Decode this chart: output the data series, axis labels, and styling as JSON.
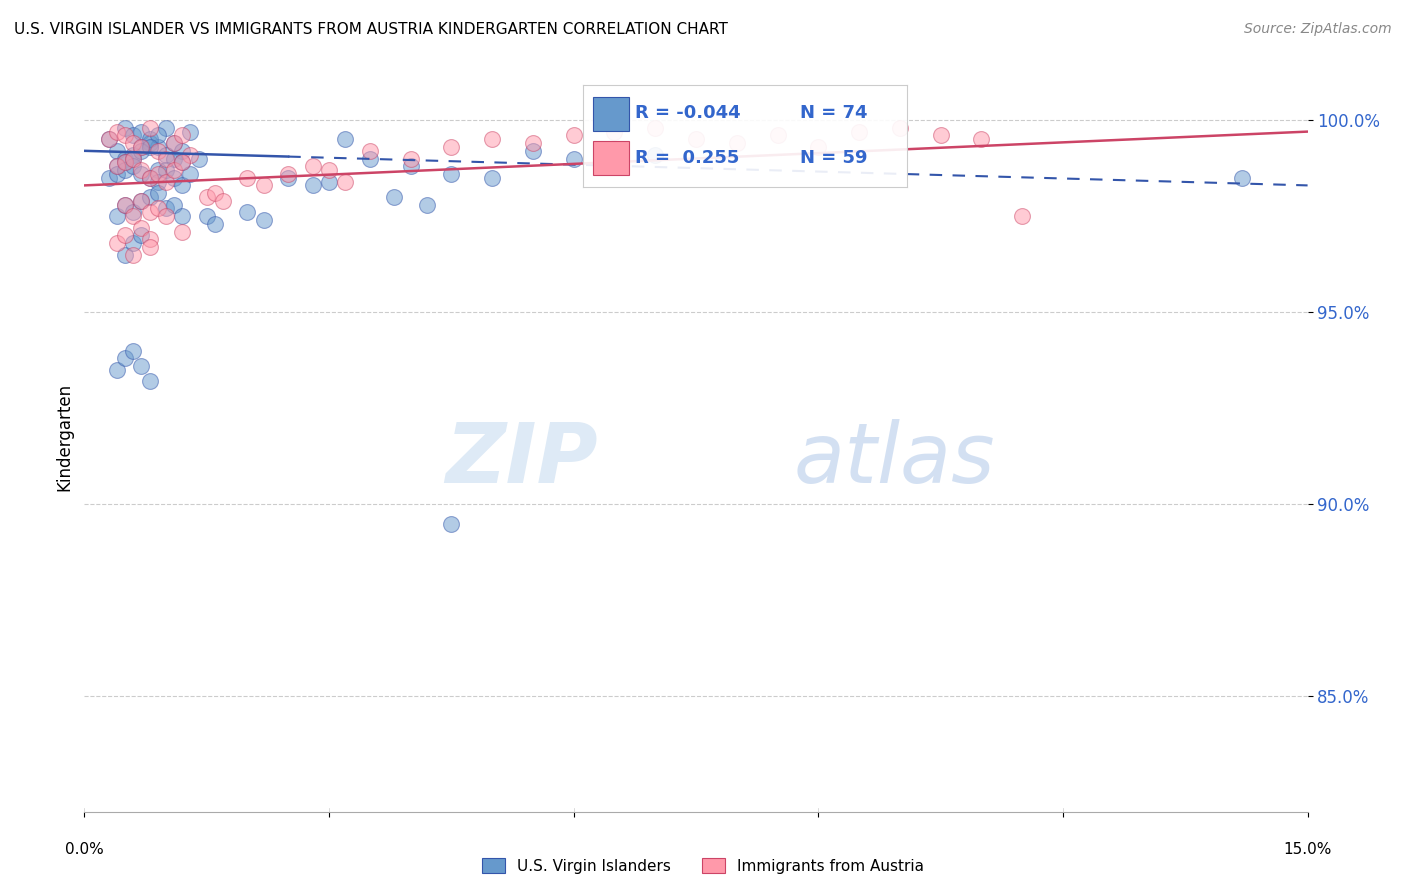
{
  "title": "U.S. VIRGIN ISLANDER VS IMMIGRANTS FROM AUSTRIA KINDERGARTEN CORRELATION CHART",
  "source": "Source: ZipAtlas.com",
  "ylabel": "Kindergarten",
  "xlim": [
    0.0,
    15.0
  ],
  "ylim": [
    82.0,
    101.5
  ],
  "ytick_values": [
    85.0,
    90.0,
    95.0,
    100.0
  ],
  "blue_color": "#6699CC",
  "pink_color": "#FF99AA",
  "blue_line_color": "#3355AA",
  "pink_line_color": "#CC4466",
  "legend_blue_R": "-0.044",
  "legend_blue_N": "74",
  "legend_pink_R": "0.255",
  "legend_pink_N": "59",
  "blue_scatter_x": [
    0.3,
    0.5,
    0.4,
    0.6,
    0.7,
    0.8,
    0.9,
    1.0,
    0.5,
    0.6,
    0.7,
    0.8,
    0.9,
    1.1,
    1.2,
    1.3,
    0.4,
    0.5,
    0.6,
    0.7,
    0.8,
    0.9,
    1.0,
    1.1,
    1.2,
    0.3,
    0.4,
    0.5,
    0.6,
    0.7,
    0.8,
    0.9,
    1.0,
    1.1,
    1.2,
    1.3,
    1.4,
    0.4,
    0.5,
    0.6,
    0.7,
    0.8,
    0.9,
    1.0,
    1.1,
    1.2,
    2.5,
    2.8,
    3.0,
    3.5,
    4.0,
    4.5,
    5.0,
    5.5,
    6.0,
    6.5,
    7.0,
    0.5,
    0.6,
    0.7,
    1.5,
    1.6,
    2.0,
    2.2,
    3.8,
    4.2,
    0.4,
    0.5,
    0.6,
    0.7,
    0.8,
    14.2,
    4.5,
    3.2
  ],
  "blue_scatter_y": [
    99.5,
    99.8,
    99.2,
    99.6,
    99.7,
    99.4,
    99.3,
    99.8,
    99.0,
    99.1,
    99.3,
    99.5,
    99.6,
    99.4,
    99.2,
    99.7,
    98.8,
    98.9,
    99.0,
    99.2,
    99.3,
    98.7,
    99.1,
    99.0,
    98.9,
    98.5,
    98.6,
    98.7,
    98.8,
    98.6,
    98.5,
    98.4,
    98.7,
    98.5,
    98.3,
    98.6,
    99.0,
    97.5,
    97.8,
    97.6,
    97.9,
    98.0,
    98.1,
    97.7,
    97.8,
    97.5,
    98.5,
    98.3,
    98.4,
    99.0,
    98.8,
    98.6,
    98.5,
    99.2,
    99.0,
    98.9,
    99.1,
    96.5,
    96.8,
    97.0,
    97.5,
    97.3,
    97.6,
    97.4,
    98.0,
    97.8,
    93.5,
    93.8,
    94.0,
    93.6,
    93.2,
    98.5,
    89.5,
    99.5
  ],
  "pink_scatter_x": [
    0.3,
    0.4,
    0.5,
    0.6,
    0.7,
    0.8,
    0.9,
    1.0,
    1.1,
    1.2,
    1.3,
    0.4,
    0.5,
    0.6,
    0.7,
    0.8,
    0.9,
    1.0,
    1.1,
    1.2,
    2.0,
    2.2,
    2.5,
    2.8,
    3.0,
    3.2,
    3.5,
    4.0,
    0.5,
    0.6,
    0.7,
    0.8,
    0.9,
    1.5,
    1.6,
    1.7,
    4.5,
    5.0,
    5.5,
    6.0,
    6.5,
    7.0,
    7.5,
    8.0,
    8.5,
    9.0,
    9.5,
    10.0,
    10.5,
    11.0,
    0.4,
    0.5,
    0.7,
    0.8,
    1.0,
    1.2,
    0.6,
    0.8,
    11.5
  ],
  "pink_scatter_y": [
    99.5,
    99.7,
    99.6,
    99.4,
    99.3,
    99.8,
    99.2,
    99.0,
    99.4,
    99.6,
    99.1,
    98.8,
    98.9,
    99.0,
    98.7,
    98.5,
    98.6,
    98.4,
    98.7,
    98.9,
    98.5,
    98.3,
    98.6,
    98.8,
    98.7,
    98.4,
    99.2,
    99.0,
    97.8,
    97.5,
    97.9,
    97.6,
    97.7,
    98.0,
    98.1,
    97.9,
    99.3,
    99.5,
    99.4,
    99.6,
    99.7,
    99.8,
    99.5,
    99.4,
    99.6,
    99.3,
    99.7,
    99.8,
    99.6,
    99.5,
    96.8,
    97.0,
    97.2,
    96.9,
    97.5,
    97.1,
    96.5,
    96.7,
    97.5
  ],
  "blue_trend_x0": 0.0,
  "blue_trend_y0": 99.2,
  "blue_trend_x1": 15.0,
  "blue_trend_y1": 98.3,
  "blue_solid_x1": 2.5,
  "pink_trend_x0": 0.0,
  "pink_trend_y0": 98.3,
  "pink_trend_x1": 15.0,
  "pink_trend_y1": 99.7,
  "watermark_zip": "ZIP",
  "watermark_atlas": "atlas",
  "background_color": "#FFFFFF",
  "grid_color": "#CCCCCC"
}
